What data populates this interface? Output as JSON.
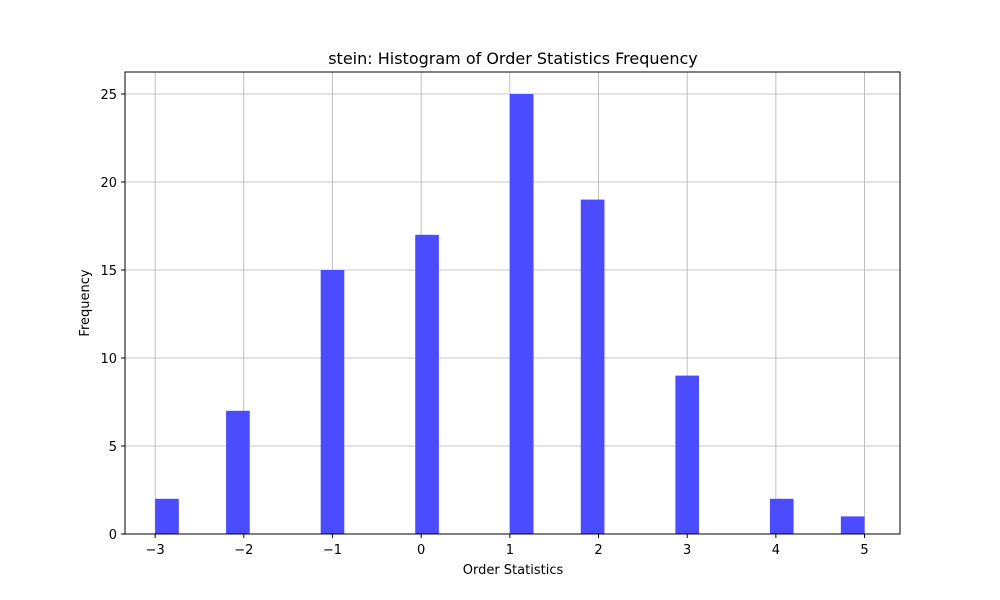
{
  "chart_data": {
    "type": "bar",
    "title": "stein: Histogram of Order Statistics Frequency",
    "xlabel": "Order Statistics",
    "ylabel": "Frequency",
    "xlim": [
      -3.34,
      5.4
    ],
    "ylim": [
      0,
      26.25
    ],
    "xticks": [
      -3,
      -2,
      -1,
      0,
      1,
      2,
      3,
      4,
      5
    ],
    "xtick_labels": [
      "−3",
      "−2",
      "−1",
      "0",
      "1",
      "2",
      "3",
      "4",
      "5"
    ],
    "yticks": [
      0,
      5,
      10,
      15,
      20,
      25
    ],
    "ytick_labels": [
      "0",
      "5",
      "10",
      "15",
      "20",
      "25"
    ],
    "grid": true,
    "bar_color": "#4b4bff",
    "bars": [
      {
        "x0": -3.0,
        "x1": -2.733,
        "value": 2
      },
      {
        "x0": -2.2,
        "x1": -1.933,
        "value": 7
      },
      {
        "x0": -1.133,
        "x1": -0.867,
        "value": 15
      },
      {
        "x0": -0.067,
        "x1": 0.2,
        "value": 17
      },
      {
        "x0": 1.0,
        "x1": 1.267,
        "value": 25
      },
      {
        "x0": 1.8,
        "x1": 2.067,
        "value": 19
      },
      {
        "x0": 2.867,
        "x1": 3.133,
        "value": 9
      },
      {
        "x0": 3.933,
        "x1": 4.2,
        "value": 2
      },
      {
        "x0": 4.733,
        "x1": 5.0,
        "value": 1
      }
    ]
  }
}
